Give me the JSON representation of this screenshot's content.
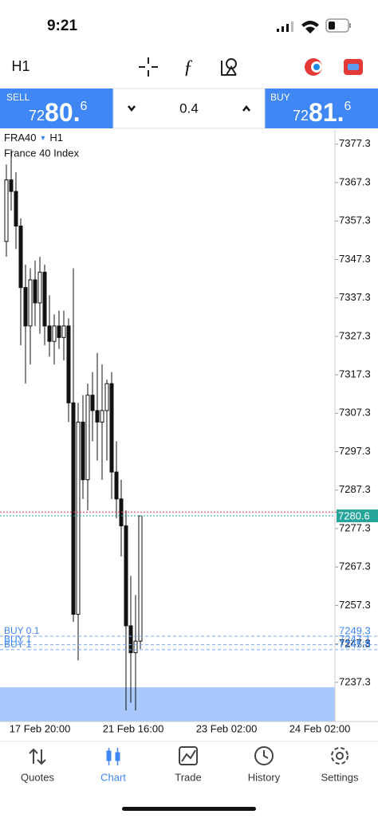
{
  "status_bar": {
    "time": "9:21"
  },
  "toolbar": {
    "timeframe": "H1"
  },
  "trade_panel": {
    "sell": {
      "label": "SELL",
      "price_prefix": "72",
      "price_main": "80.",
      "price_suffix": "6"
    },
    "volume": "0.4",
    "buy": {
      "label": "BUY",
      "price_prefix": "72",
      "price_main": "81.",
      "price_suffix": "6"
    }
  },
  "chart_data": {
    "type": "candlestick",
    "symbol": "FRA40",
    "timeframe": "H1",
    "description": "France 40 Index",
    "ylim": [
      7227.1,
      7381.2
    ],
    "yticks": [
      7237.3,
      7247.3,
      7257.3,
      7267.3,
      7277.3,
      7287.3,
      7297.3,
      7307.3,
      7317.3,
      7327.3,
      7337.3,
      7347.3,
      7357.3,
      7367.3,
      7377.3
    ],
    "open": [
      7352,
      7368,
      7365,
      7356,
      7340,
      7330,
      7342,
      7336,
      7344,
      7330,
      7326,
      7330,
      7327,
      7330,
      7310,
      7255,
      7305,
      7290,
      7312,
      7308,
      7305,
      7308,
      7315,
      7292,
      7285,
      7278,
      7252,
      7245,
      7248
    ],
    "high": [
      7372,
      7376,
      7370,
      7358,
      7346,
      7345,
      7347,
      7348,
      7346,
      7338,
      7333,
      7334,
      7334,
      7332,
      7345,
      7310,
      7312,
      7315,
      7318,
      7323,
      7320,
      7316,
      7318,
      7300,
      7290,
      7282,
      7265,
      7260,
      7280.6
    ],
    "low": [
      7348,
      7360,
      7350,
      7325,
      7315,
      7320,
      7330,
      7328,
      7325,
      7322,
      7320,
      7324,
      7321,
      7305,
      7253,
      7243,
      7285,
      7282,
      7300,
      7295,
      7290,
      7295,
      7285,
      7280,
      7270,
      7230,
      7232,
      7230,
      7246
    ],
    "close": [
      7368,
      7365,
      7356,
      7340,
      7330,
      7342,
      7336,
      7344,
      7330,
      7326,
      7330,
      7327,
      7330,
      7310,
      7255,
      7305,
      7290,
      7312,
      7308,
      7305,
      7308,
      7315,
      7292,
      7285,
      7278,
      7252,
      7245,
      7248,
      7280.6
    ],
    "bid": 7280.6,
    "ask": 7281.6,
    "orders": [
      {
        "label": "BUY 0.1",
        "price": 7249.3
      },
      {
        "label": "BUY 1",
        "price": 7247.1
      },
      {
        "label": "BUY 1",
        "price": 7245.8
      }
    ],
    "x_labels": [
      "17 Feb 20:00",
      "21 Feb 16:00",
      "23 Feb 02:00",
      "24 Feb 02:00"
    ]
  },
  "tab_bar": {
    "tabs": [
      "Quotes",
      "Chart",
      "Trade",
      "History",
      "Settings"
    ],
    "active": 1
  }
}
